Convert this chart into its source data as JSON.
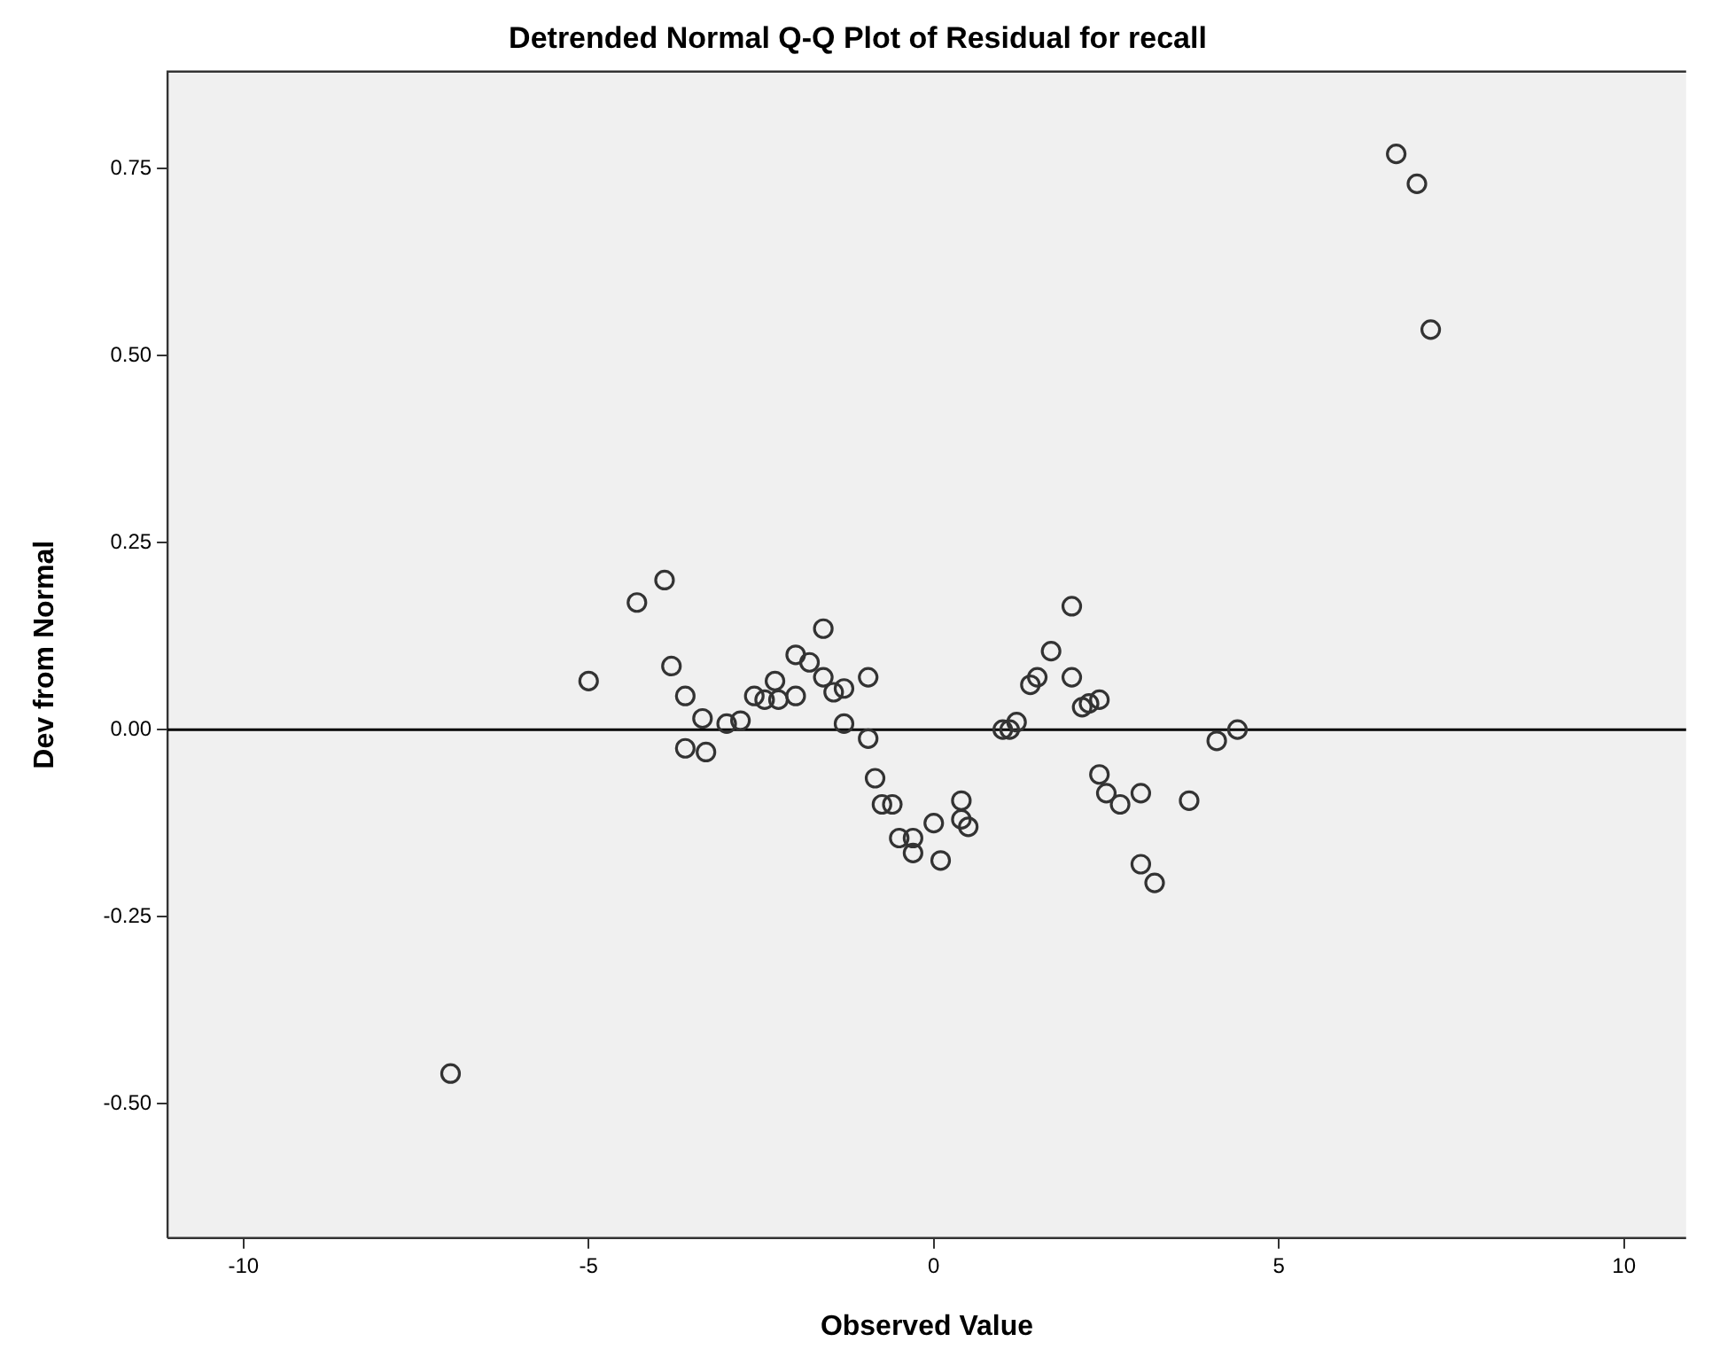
{
  "chart_data": {
    "type": "scatter",
    "title": "Detrended Normal Q-Q Plot of Residual for recall",
    "xlabel": "Observed Value",
    "ylabel": "Dev from Normal",
    "x": [
      -7.0,
      -5.0,
      -4.3,
      -3.9,
      -3.8,
      -3.6,
      -3.6,
      -3.35,
      -3.3,
      -3.0,
      -2.8,
      -2.6,
      -2.45,
      -2.3,
      -2.25,
      -2.0,
      -2.0,
      -1.8,
      -1.6,
      -1.6,
      -1.45,
      -1.3,
      -1.3,
      -0.95,
      -0.95,
      -0.85,
      -0.75,
      -0.6,
      -0.5,
      -0.3,
      -0.3,
      0.0,
      0.1,
      0.4,
      0.4,
      0.5,
      1.0,
      1.1,
      1.2,
      1.4,
      1.5,
      1.7,
      2.0,
      2.0,
      2.15,
      2.25,
      2.4,
      2.4,
      2.5,
      2.7,
      3.0,
      3.0,
      3.2,
      3.7,
      4.1,
      4.4,
      6.7,
      7.0,
      7.2
    ],
    "series": [
      {
        "color": "#333333",
        "values": [
          -0.46,
          0.065,
          0.17,
          0.2,
          0.085,
          0.045,
          -0.025,
          0.015,
          -0.03,
          0.008,
          0.012,
          0.045,
          0.04,
          0.065,
          0.04,
          0.1,
          0.045,
          0.09,
          0.135,
          0.07,
          0.05,
          0.055,
          0.008,
          0.07,
          -0.012,
          -0.065,
          -0.1,
          -0.1,
          -0.145,
          -0.145,
          -0.165,
          -0.125,
          -0.175,
          -0.095,
          -0.12,
          -0.13,
          0.0,
          0.0,
          0.01,
          0.06,
          0.07,
          0.105,
          0.165,
          0.07,
          0.03,
          0.035,
          0.04,
          -0.06,
          -0.085,
          -0.1,
          -0.18,
          -0.085,
          -0.205,
          -0.095,
          -0.015,
          0.0,
          0.77,
          0.73,
          0.535
        ]
      }
    ],
    "xlim": [
      -11.1,
      10.9
    ],
    "xticks": [
      -10,
      -5,
      0,
      5,
      10
    ],
    "ylim": [
      -0.68,
      0.88
    ],
    "yticks": [
      {
        "value": -0.5,
        "label": "-0.50"
      },
      {
        "value": -0.25,
        "label": "-0.25"
      },
      {
        "value": 0,
        "label": "0.00"
      },
      {
        "value": 0.25,
        "label": "0.25"
      },
      {
        "value": 0.5,
        "label": "0.50"
      },
      {
        "value": 0.75,
        "label": "0.75"
      }
    ],
    "ref_lines": [
      {
        "axis": "y",
        "value": 0,
        "color": "#000000"
      }
    ],
    "marker": "circle",
    "grid": false,
    "legend": false
  }
}
